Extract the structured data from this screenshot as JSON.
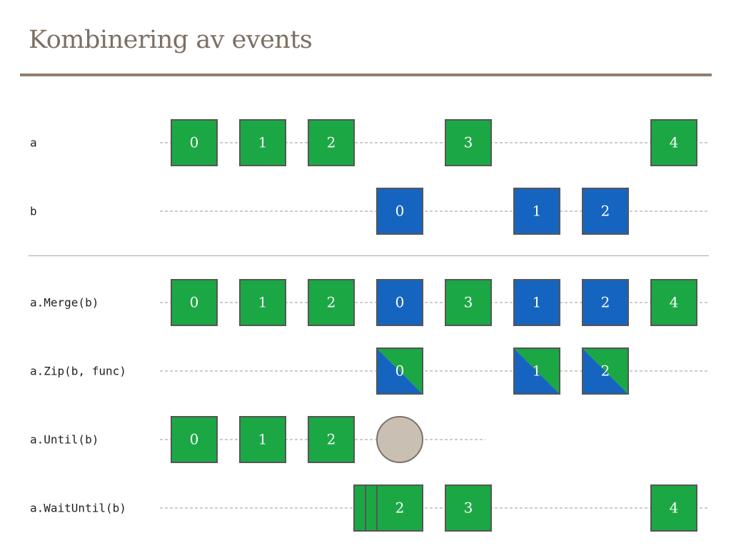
{
  "title": "Kombinering av events",
  "colors": {
    "a": "#1ba844",
    "b": "#1565c0",
    "stop": "#c9bfb3",
    "border": "#555555",
    "title": "#7d6f63",
    "rule": "#8e7e6e"
  },
  "rows": [
    {
      "label": "a",
      "end": 992,
      "events": [
        {
          "slot": 0,
          "text": "0",
          "kind": "a"
        },
        {
          "slot": 1,
          "text": "1",
          "kind": "a"
        },
        {
          "slot": 2,
          "text": "2",
          "kind": "a"
        },
        {
          "slot": 4,
          "text": "3",
          "kind": "a"
        },
        {
          "slot": 7,
          "text": "4",
          "kind": "a"
        }
      ]
    },
    {
      "label": "b",
      "end": 992,
      "events": [
        {
          "slot": 3,
          "text": "0",
          "kind": "b"
        },
        {
          "slot": 5,
          "text": "1",
          "kind": "b"
        },
        {
          "slot": 6,
          "text": "2",
          "kind": "b"
        }
      ]
    },
    {
      "label": "a.Merge(b)",
      "end": 992,
      "events": [
        {
          "slot": 0,
          "text": "0",
          "kind": "a"
        },
        {
          "slot": 1,
          "text": "1",
          "kind": "a"
        },
        {
          "slot": 2,
          "text": "2",
          "kind": "a"
        },
        {
          "slot": 3,
          "text": "0",
          "kind": "b"
        },
        {
          "slot": 4,
          "text": "3",
          "kind": "a"
        },
        {
          "slot": 5,
          "text": "1",
          "kind": "b"
        },
        {
          "slot": 6,
          "text": "2",
          "kind": "b"
        },
        {
          "slot": 7,
          "text": "4",
          "kind": "a"
        }
      ]
    },
    {
      "label": "a.Zip(b, func)",
      "end": 992,
      "events": [
        {
          "slot": 3,
          "text": "0",
          "kind": "zip"
        },
        {
          "slot": 5,
          "text": "1",
          "kind": "zip"
        },
        {
          "slot": 6,
          "text": "2",
          "kind": "zip"
        }
      ]
    },
    {
      "label": "a.Until(b)",
      "end": 680,
      "events": [
        {
          "slot": 0,
          "text": "0",
          "kind": "a"
        },
        {
          "slot": 1,
          "text": "1",
          "kind": "a"
        },
        {
          "slot": 2,
          "text": "2",
          "kind": "a"
        },
        {
          "slot": 3,
          "text": "",
          "kind": "stop"
        }
      ]
    },
    {
      "label": "a.WaitUntil(b)",
      "end": 992,
      "events": [
        {
          "slot": 3,
          "text": "",
          "kind": "a",
          "stack": 0
        },
        {
          "slot": 3,
          "text": "",
          "kind": "a",
          "stack": 1
        },
        {
          "slot": 3,
          "text": "2",
          "kind": "a",
          "stack": 2
        },
        {
          "slot": 4,
          "text": "3",
          "kind": "a"
        },
        {
          "slot": 7,
          "text": "4",
          "kind": "a"
        }
      ]
    }
  ]
}
